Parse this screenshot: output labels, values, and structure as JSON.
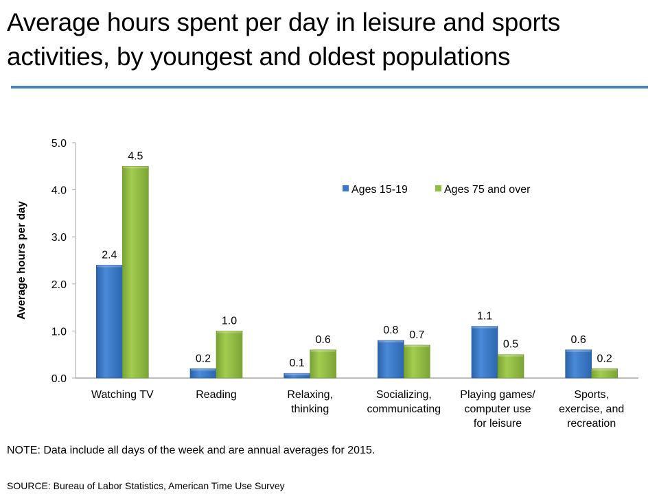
{
  "title": "Average hours spent per day in leisure and sports activities, by youngest and oldest populations",
  "note": "NOTE: Data include all days of the week and are annual averages for  2015.",
  "source": "SOURCE: Bureau of Labor Statistics, American Time Use Survey",
  "colors": {
    "rule": "#4f81bd",
    "series1": "#3a78c9",
    "series2": "#8fbd3e"
  },
  "chart_data": {
    "type": "bar",
    "title": "",
    "xlabel": "",
    "ylabel": "Average hours per day",
    "ylim": [
      0,
      5
    ],
    "yticks": [
      "0.0",
      "1.0",
      "2.0",
      "3.0",
      "4.0",
      "5.0"
    ],
    "grid": false,
    "legend_position": "top-right",
    "categories": [
      [
        "Watching TV"
      ],
      [
        "Reading"
      ],
      [
        "Relaxing,",
        "thinking"
      ],
      [
        "Socializing,",
        "communicating"
      ],
      [
        "Playing games/",
        "computer use",
        "for leisure"
      ],
      [
        "Sports,",
        "exercise, and",
        "recreation"
      ]
    ],
    "series": [
      {
        "name": "Ages 15-19",
        "values": [
          2.4,
          0.2,
          0.1,
          0.8,
          1.1,
          0.6
        ],
        "labels": [
          "2.4",
          "0.2",
          "0.1",
          "0.8",
          "1.1",
          "0.6"
        ]
      },
      {
        "name": "Ages 75 and over",
        "values": [
          4.5,
          1.0,
          0.6,
          0.7,
          0.5,
          0.2
        ],
        "labels": [
          "4.5",
          "1.0",
          "0.6",
          "0.7",
          "0.5",
          "0.2"
        ]
      }
    ]
  }
}
